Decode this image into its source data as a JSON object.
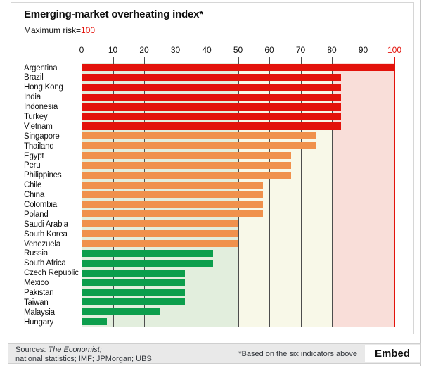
{
  "header": {
    "title": "Emerging-market overheating index*",
    "subtitle_prefix": "Maximum risk=",
    "subtitle_value": "100"
  },
  "chart_data": {
    "type": "bar",
    "orientation": "horizontal",
    "title": "Emerging-market overheating index*",
    "subtitle": "Maximum risk=100",
    "xlim": [
      0,
      100
    ],
    "x_ticks": [
      0,
      10,
      20,
      30,
      40,
      50,
      60,
      70,
      80,
      90,
      100
    ],
    "grid": "vertical",
    "legend": "none",
    "zones": [
      {
        "name": "low-risk-zone",
        "from": 0,
        "to": 50,
        "color": "#e2eedd"
      },
      {
        "name": "medium-risk-zone",
        "from": 50,
        "to": 80,
        "color": "#f8f8e8"
      },
      {
        "name": "high-risk-zone",
        "from": 80,
        "to": 100,
        "color": "#f9ded9"
      }
    ],
    "group_colors": {
      "high": "#e3120b",
      "medium": "#f0914c",
      "low": "#0c9e4c"
    },
    "series": [
      {
        "country": "Argentina",
        "value": 100,
        "group": "high"
      },
      {
        "country": "Brazil",
        "value": 83,
        "group": "high"
      },
      {
        "country": "Hong Kong",
        "value": 83,
        "group": "high"
      },
      {
        "country": "India",
        "value": 83,
        "group": "high"
      },
      {
        "country": "Indonesia",
        "value": 83,
        "group": "high"
      },
      {
        "country": "Turkey",
        "value": 83,
        "group": "high"
      },
      {
        "country": "Vietnam",
        "value": 83,
        "group": "high"
      },
      {
        "country": "Singapore",
        "value": 75,
        "group": "medium"
      },
      {
        "country": "Thailand",
        "value": 75,
        "group": "medium"
      },
      {
        "country": "Egypt",
        "value": 67,
        "group": "medium"
      },
      {
        "country": "Peru",
        "value": 67,
        "group": "medium"
      },
      {
        "country": "Philippines",
        "value": 67,
        "group": "medium"
      },
      {
        "country": "Chile",
        "value": 58,
        "group": "medium"
      },
      {
        "country": "China",
        "value": 58,
        "group": "medium"
      },
      {
        "country": "Colombia",
        "value": 58,
        "group": "medium"
      },
      {
        "country": "Poland",
        "value": 58,
        "group": "medium"
      },
      {
        "country": "Saudi Arabia",
        "value": 50,
        "group": "medium"
      },
      {
        "country": "South Korea",
        "value": 50,
        "group": "medium"
      },
      {
        "country": "Venezuela",
        "value": 50,
        "group": "medium"
      },
      {
        "country": "Russia",
        "value": 42,
        "group": "low"
      },
      {
        "country": "South Africa",
        "value": 42,
        "group": "low"
      },
      {
        "country": "Czech Republic",
        "value": 33,
        "group": "low"
      },
      {
        "country": "Mexico",
        "value": 33,
        "group": "low"
      },
      {
        "country": "Pakistan",
        "value": 33,
        "group": "low"
      },
      {
        "country": "Taiwan",
        "value": 33,
        "group": "low"
      },
      {
        "country": "Malaysia",
        "value": 25,
        "group": "low"
      },
      {
        "country": "Hungary",
        "value": 8,
        "group": "low"
      }
    ]
  },
  "footer": {
    "sources_prefix": "Sources: ",
    "sources_italic": "The Economist;",
    "sources_line2": "national statistics; IMF; JPMorgan; UBS",
    "footnote": "*Based on the six indicators above",
    "embed_label": "Embed"
  },
  "colors": {
    "bar_red": "#e3120b",
    "bar_orange": "#f0914c",
    "bar_green": "#0c9e4c",
    "zone_green": "#e2eedd",
    "zone_cream": "#f8f8e8",
    "zone_pink": "#f9ded9",
    "gridline": "#4d4d4d",
    "max_line_red": "#e3120b",
    "footer_background": "#e9e9e9"
  }
}
